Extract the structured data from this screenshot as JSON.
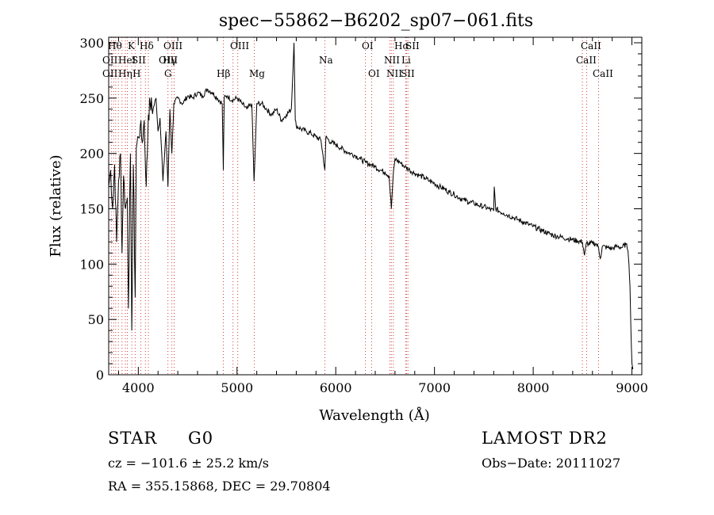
{
  "chart_data": {
    "type": "line",
    "title": "spec−55862−B6202_sp07−061.fits",
    "xlabel": "Wavelength (Å)",
    "ylabel": "Flux (relative)",
    "xlim": [
      3700,
      9100
    ],
    "ylim": [
      0,
      305
    ],
    "xticks": [
      4000,
      5000,
      6000,
      7000,
      8000,
      9000
    ],
    "yticks": [
      0,
      50,
      100,
      150,
      200,
      250,
      300
    ],
    "grid": false,
    "series": [
      {
        "x": [
          3700,
          3720,
          3740,
          3760,
          3780,
          3800,
          3820,
          3835,
          3850,
          3870,
          3889,
          3900,
          3920,
          3934,
          3950,
          3968,
          3980,
          4000,
          4020,
          4040,
          4060,
          4080,
          4102,
          4120,
          4150,
          4180,
          4200,
          4220,
          4250,
          4280,
          4300,
          4320,
          4340,
          4360,
          4400,
          4450,
          4500,
          4550,
          4600,
          4650,
          4700,
          4750,
          4800,
          4850,
          4861,
          4870,
          4900,
          4950,
          5000,
          5050,
          5100,
          5150,
          5172,
          5183,
          5200,
          5250,
          5300,
          5350,
          5400,
          5450,
          5500,
          5550,
          5577,
          5590,
          5600,
          5650,
          5700,
          5750,
          5800,
          5850,
          5890,
          5900,
          5950,
          6000,
          6050,
          6100,
          6150,
          6200,
          6250,
          6300,
          6350,
          6400,
          6450,
          6500,
          6540,
          6563,
          6580,
          6600,
          6650,
          6700,
          6750,
          6800,
          6850,
          6900,
          6950,
          7000,
          7050,
          7100,
          7150,
          7200,
          7250,
          7300,
          7350,
          7400,
          7450,
          7500,
          7550,
          7600,
          7605,
          7620,
          7650,
          7700,
          7750,
          7800,
          7850,
          7900,
          7950,
          8000,
          8050,
          8100,
          8150,
          8200,
          8250,
          8300,
          8350,
          8400,
          8450,
          8498,
          8520,
          8542,
          8560,
          8600,
          8640,
          8662,
          8680,
          8700,
          8750,
          8800,
          8850,
          8900,
          8940,
          8960,
          8970,
          8980,
          8990,
          9000,
          9010
        ],
        "y": [
          170,
          185,
          150,
          190,
          120,
          175,
          200,
          110,
          180,
          150,
          160,
          60,
          200,
          40,
          190,
          70,
          205,
          215,
          225,
          210,
          230,
          170,
          235,
          245,
          240,
          250,
          220,
          232,
          175,
          220,
          170,
          240,
          200,
          245,
          250,
          245,
          252,
          250,
          255,
          252,
          258,
          255,
          250,
          245,
          185,
          250,
          252,
          248,
          250,
          245,
          240,
          245,
          175,
          200,
          245,
          245,
          240,
          235,
          240,
          230,
          235,
          240,
          300,
          230,
          225,
          222,
          220,
          218,
          215,
          212,
          185,
          215,
          210,
          208,
          205,
          202,
          200,
          198,
          195,
          192,
          190,
          188,
          185,
          183,
          180,
          150,
          178,
          195,
          192,
          188,
          185,
          182,
          180,
          178,
          175,
          173,
          170,
          168,
          165,
          163,
          160,
          158,
          156,
          155,
          153,
          152,
          150,
          148,
          170,
          150,
          148,
          146,
          144,
          142,
          140,
          138,
          136,
          134,
          132,
          130,
          128,
          126,
          125,
          124,
          123,
          122,
          121,
          120,
          108,
          120,
          118,
          119,
          118,
          115,
          105,
          116,
          115,
          114,
          116,
          115,
          118,
          112,
          100,
          80,
          40,
          10,
          5
        ]
      }
    ],
    "line_labels": {
      "left": [
        [
          "Hθ",
          "K",
          "Hδ",
          "OIII",
          "OIII"
        ],
        [
          "OII",
          "HeI",
          "SII",
          "OIII"
        ],
        [
          "OII",
          "Hη",
          "H",
          "Hγ",
          "G",
          "Hβ",
          "Mg"
        ]
      ],
      "right": [
        [
          "OI",
          "Hα",
          "SII",
          "Na"
        ],
        [
          "NII",
          "Li",
          "OI",
          "NII",
          "SII"
        ],
        [
          "CaII",
          "CaII",
          "CaII"
        ]
      ]
    }
  },
  "footer": {
    "object_type": "STAR",
    "subclass": "G0",
    "survey": "LAMOST DR2",
    "redshift": "cz = −101.6 ± 25.2 km/s",
    "obs_date": "Obs−Date: 20111027",
    "coords": "RA = 355.15868, DEC =  29.70804"
  }
}
